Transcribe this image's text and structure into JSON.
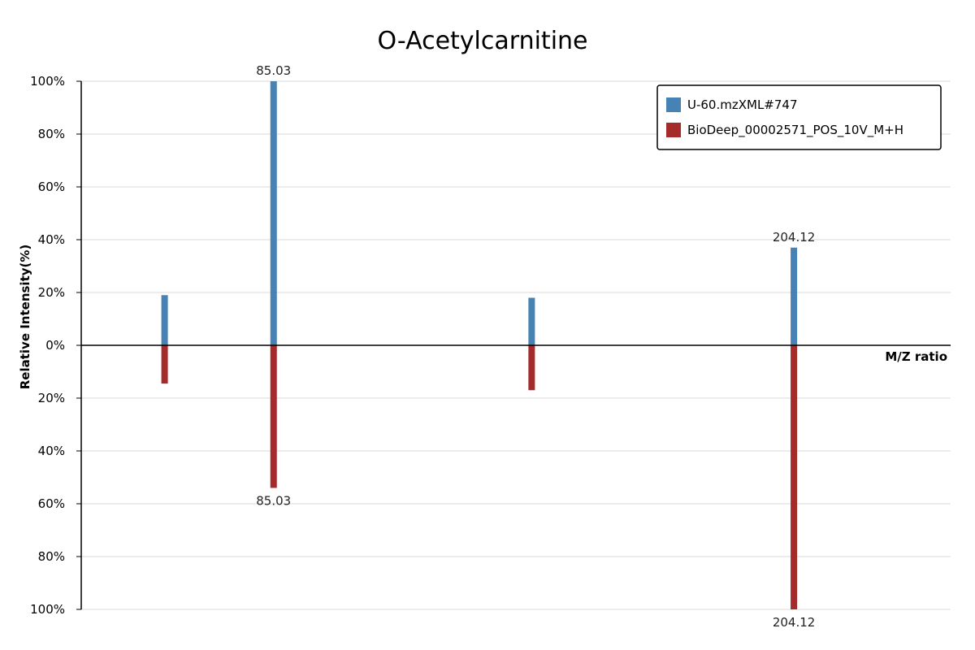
{
  "chart_data": {
    "type": "bar",
    "title": "O-Acetylcarnitine",
    "xlabel": "M/Z ratio",
    "ylabel": "Relative Intensity(%)",
    "ylim": [
      -100,
      100
    ],
    "yticks": [
      "100%",
      "80%",
      "60%",
      "40%",
      "20%",
      "0%",
      "20%",
      "40%",
      "60%",
      "80%",
      "100%"
    ],
    "grid": true,
    "legend_position": "top-right",
    "series": [
      {
        "name": "U-60.mzXML#747",
        "color": "#4682b4",
        "direction": "up",
        "peaks": [
          {
            "mz": 60.08,
            "intensity": 19,
            "label": ""
          },
          {
            "mz": 85.03,
            "intensity": 100,
            "label": "85.03"
          },
          {
            "mz": 144.1,
            "intensity": 18,
            "label": ""
          },
          {
            "mz": 204.12,
            "intensity": 37,
            "label": "204.12"
          }
        ]
      },
      {
        "name": "BioDeep_00002571_POS_10V_M+H",
        "color": "#a52a2a",
        "direction": "down",
        "peaks": [
          {
            "mz": 60.08,
            "intensity": 14.5,
            "label": ""
          },
          {
            "mz": 85.03,
            "intensity": 54,
            "label": "85.03"
          },
          {
            "mz": 144.1,
            "intensity": 17,
            "label": ""
          },
          {
            "mz": 204.12,
            "intensity": 100,
            "label": "204.12"
          }
        ]
      }
    ],
    "xlim": [
      41,
      240
    ]
  }
}
